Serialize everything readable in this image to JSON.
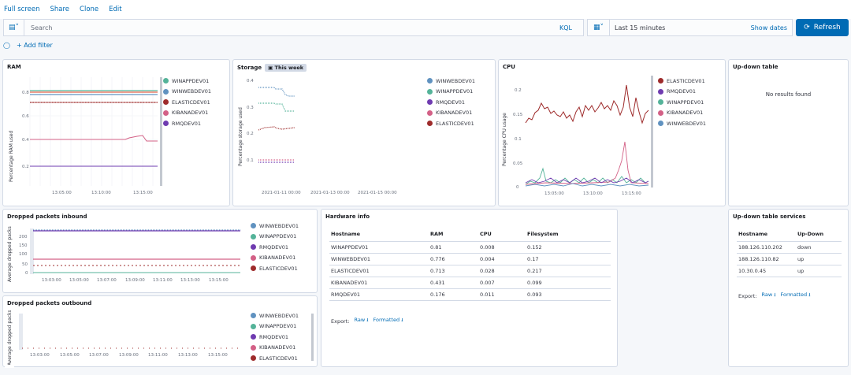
{
  "nav": {
    "items": [
      "Full screen",
      "Share",
      "Clone",
      "Edit"
    ]
  },
  "query": {
    "placeholder": "Search",
    "language": "KQL"
  },
  "date": {
    "range": "Last 15 minutes",
    "show_dates": "Show dates"
  },
  "refresh_label": "Refresh",
  "filter": {
    "add_label": "+ Add filter"
  },
  "colors": {
    "accent": "#006bb4",
    "win_app": "#54b399",
    "win_web": "#6092c0",
    "elastic": "#9e2b2b",
    "kibana": "#d36086",
    "rmq": "#6f3bb0"
  },
  "ram": {
    "title": "RAM",
    "ylabel": "Percentage RAM used",
    "yticks": [
      "0.8",
      "0.6",
      "0.4",
      "0.2"
    ],
    "xticks": [
      "13:05:00",
      "13:10:00",
      "13:15:00"
    ],
    "legend": [
      "WINAPPDEV01",
      "WINWEBDEV01",
      "ELASTICDEV01",
      "KIBANADEV01",
      "RMQDEV01"
    ]
  },
  "storage": {
    "title": "Storage",
    "badge": "This week",
    "ylabel": "Percentage storage used",
    "yticks": [
      "0.4",
      "0.3",
      "0.2",
      "0.1"
    ],
    "xticks": [
      "2021-01-11 00:00",
      "2021-01-13 00:00",
      "2021-01-15 00:00"
    ],
    "legend": [
      "WINWEBDEV01",
      "WINAPPDEV01",
      "RMQDEV01",
      "KIBANADEV01",
      "ELASTICDEV01"
    ]
  },
  "cpu": {
    "title": "CPU",
    "ylabel": "Percentage CPU usage",
    "yticks": [
      "0.2",
      "0.15",
      "0.1",
      "0.05",
      "0"
    ],
    "xticks": [
      "13:05:00",
      "13:10:00",
      "13:15:00"
    ],
    "legend": [
      "ELASTICDEV01",
      "RMQDEV01",
      "WINAPPDEV01",
      "KIBANADEV01",
      "WINWEBDEV01"
    ]
  },
  "updown": {
    "title": "Up-down table",
    "empty": "No results found"
  },
  "inbound": {
    "title": "Dropped packets inbound",
    "ylabel": "Average dropped packs",
    "yticks": [
      "200",
      "150",
      "100",
      "50",
      "0"
    ],
    "xticks": [
      "13:03:00",
      "13:05:00",
      "13:07:00",
      "13:09:00",
      "13:11:00",
      "13:13:00",
      "13:15:00"
    ],
    "legend": [
      "WINWEBDEV01",
      "WINAPPDEV01",
      "RMQDEV01",
      "KIBANADEV01",
      "ELASTICDEV01"
    ]
  },
  "outbound": {
    "title": "Dropped packets outbound",
    "ylabel": "Average dropped packs",
    "xticks": [
      "13:03:00",
      "13:05:00",
      "13:07:00",
      "13:09:00",
      "13:11:00",
      "13:13:00",
      "13:15:00"
    ],
    "legend": [
      "WINWEBDEV01",
      "WINAPPDEV01",
      "RMQDEV01",
      "KIBANADEV01",
      "ELASTICDEV01"
    ]
  },
  "hardware": {
    "title": "Hardware info",
    "headers": [
      "Hostname",
      "RAM",
      "CPU",
      "Filesystem"
    ],
    "rows": [
      [
        "WINAPPDEV01",
        "0.81",
        "0.008",
        "0.152"
      ],
      [
        "WINWEBDEV01",
        "0.776",
        "0.004",
        "0.17"
      ],
      [
        "ELASTICDEV01",
        "0.713",
        "0.028",
        "0.217"
      ],
      [
        "KIBANADEV01",
        "0.431",
        "0.007",
        "0.099"
      ],
      [
        "RMQDEV01",
        "0.176",
        "0.011",
        "0.093"
      ]
    ],
    "export": "Export:",
    "raw": "Raw",
    "formatted": "Formatted"
  },
  "services": {
    "title": "Up-down table services",
    "headers": [
      "Hostname",
      "Up-Down"
    ],
    "rows": [
      [
        "188.126.110.202",
        "down"
      ],
      [
        "188.126.110.82",
        "up"
      ],
      [
        "10.30.0.45",
        "up"
      ]
    ],
    "export": "Export:",
    "raw": "Raw",
    "formatted": "Formatted"
  }
}
